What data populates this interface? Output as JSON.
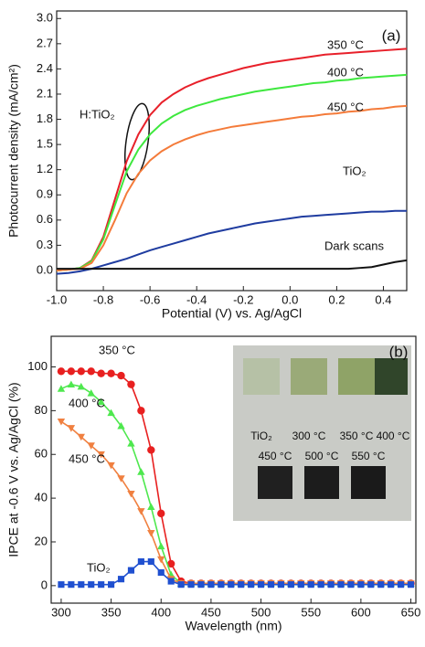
{
  "chart_data": [
    {
      "type": "line",
      "panel_label": "(a)",
      "annotation": "H:TiO₂",
      "xlabel": "Potential (V) vs. Ag/AgCl",
      "ylabel": "Photocurrent density (mA/cm²)",
      "xlim": [
        -1.0,
        0.5
      ],
      "ylim": [
        -0.24,
        3.09
      ],
      "xticks": [
        {
          "value": -1.0,
          "label": "-1.0"
        },
        -0.8,
        -0.6,
        -0.4,
        -0.2,
        {
          "value": 0,
          "label": "0.0"
        },
        0.2,
        0.4
      ],
      "yticks": [
        {
          "value": 0,
          "label": "0.0"
        },
        0.3,
        0.6,
        0.9,
        1.2,
        1.5,
        1.8,
        2.1,
        2.4,
        2.7,
        {
          "value": 3,
          "label": "3.0"
        }
      ],
      "x": [
        -1,
        -0.95,
        -0.9,
        -0.85,
        -0.8,
        -0.75,
        -0.7,
        -0.65,
        -0.6,
        -0.55,
        -0.5,
        -0.45,
        -0.4,
        -0.35,
        -0.3,
        -0.25,
        -0.2,
        -0.15,
        -0.1,
        -0.05,
        0,
        0.05,
        0.1,
        0.15,
        0.2,
        0.25,
        0.3,
        0.35,
        0.4,
        0.45,
        0.5
      ],
      "series": [
        {
          "name": "350 °C",
          "color": "#e8202a",
          "values": [
            0.0,
            0.01,
            0.03,
            0.12,
            0.4,
            0.85,
            1.3,
            1.62,
            1.85,
            2.0,
            2.1,
            2.18,
            2.24,
            2.29,
            2.33,
            2.37,
            2.41,
            2.44,
            2.47,
            2.49,
            2.51,
            2.53,
            2.55,
            2.57,
            2.58,
            2.59,
            2.6,
            2.61,
            2.62,
            2.63,
            2.64
          ]
        },
        {
          "name": "400 °C",
          "color": "#3ee83e",
          "values": [
            0.0,
            0.01,
            0.03,
            0.11,
            0.37,
            0.78,
            1.18,
            1.44,
            1.62,
            1.75,
            1.84,
            1.91,
            1.96,
            2.0,
            2.04,
            2.07,
            2.1,
            2.13,
            2.15,
            2.17,
            2.19,
            2.21,
            2.23,
            2.24,
            2.26,
            2.27,
            2.29,
            2.3,
            2.31,
            2.32,
            2.33
          ]
        },
        {
          "name": "450 °C",
          "color": "#f47b3a",
          "values": [
            0.0,
            0.01,
            0.02,
            0.09,
            0.3,
            0.6,
            0.92,
            1.15,
            1.31,
            1.42,
            1.5,
            1.56,
            1.61,
            1.65,
            1.68,
            1.71,
            1.73,
            1.75,
            1.77,
            1.79,
            1.81,
            1.83,
            1.84,
            1.86,
            1.87,
            1.89,
            1.9,
            1.92,
            1.93,
            1.95,
            1.96
          ]
        },
        {
          "name": "TiO₂",
          "color": "#1f3ca0",
          "values": [
            -0.04,
            -0.03,
            -0.01,
            0.02,
            0.06,
            0.1,
            0.14,
            0.19,
            0.24,
            0.28,
            0.32,
            0.36,
            0.4,
            0.44,
            0.47,
            0.5,
            0.53,
            0.56,
            0.58,
            0.6,
            0.62,
            0.64,
            0.65,
            0.66,
            0.67,
            0.68,
            0.69,
            0.7,
            0.7,
            0.71,
            0.71
          ]
        },
        {
          "name": "Dark scans",
          "color": "#111111",
          "values": [
            0.02,
            0.02,
            0.02,
            0.02,
            0.02,
            0.02,
            0.02,
            0.02,
            0.02,
            0.02,
            0.02,
            0.02,
            0.02,
            0.02,
            0.02,
            0.02,
            0.02,
            0.02,
            0.02,
            0.02,
            0.02,
            0.02,
            0.02,
            0.02,
            0.02,
            0.02,
            0.03,
            0.04,
            0.07,
            0.1,
            0.12
          ]
        }
      ]
    },
    {
      "type": "line",
      "panel_label": "(b)",
      "xlabel": "Wavelength (nm)",
      "ylabel": "IPCE at -0.6 V vs. Ag/AgCl (%)",
      "xlim": [
        290,
        655
      ],
      "ylim": [
        -8,
        114
      ],
      "xticks": [
        300,
        350,
        400,
        450,
        500,
        550,
        600,
        650
      ],
      "yticks": [
        0,
        20,
        40,
        60,
        80,
        100
      ],
      "inset_labels": [
        "TiO₂",
        "300 °C",
        "350 °C",
        "400 °C",
        "450 °C",
        "500 °C",
        "550 °C"
      ],
      "x": [
        300,
        310,
        320,
        330,
        340,
        350,
        360,
        370,
        380,
        390,
        400,
        410,
        420,
        430,
        440,
        450,
        460,
        470,
        480,
        490,
        500,
        510,
        520,
        530,
        540,
        550,
        560,
        570,
        580,
        590,
        600,
        610,
        620,
        630,
        640,
        650
      ],
      "series": [
        {
          "name": "350 °C",
          "color": "#e82020",
          "marker": "circle",
          "values": [
            98,
            98,
            98,
            98,
            97,
            97,
            96,
            92,
            80,
            62,
            33,
            10,
            2,
            1,
            1,
            1,
            1,
            1,
            1,
            1,
            1,
            1,
            1,
            1,
            1,
            1,
            1,
            1,
            1,
            1,
            1,
            1,
            1,
            1,
            1,
            1
          ]
        },
        {
          "name": "400 °C",
          "color": "#4ee84e",
          "marker": "triangle",
          "values": [
            90,
            92,
            91,
            88,
            84,
            79,
            73,
            65,
            52,
            36,
            18,
            5,
            1,
            1,
            1,
            1,
            1,
            1,
            1,
            1,
            1,
            1,
            1,
            1,
            1,
            1,
            1,
            1,
            1,
            1,
            1,
            1,
            1,
            1,
            1,
            1
          ]
        },
        {
          "name": "450 °C",
          "color": "#f08040",
          "marker": "down-triangle",
          "values": [
            75,
            72,
            68,
            64,
            60,
            55,
            49,
            42,
            34,
            24,
            12,
            3,
            1,
            1,
            1,
            1,
            1,
            1,
            1,
            1,
            1,
            1,
            1,
            1,
            1,
            1,
            1,
            1,
            1,
            1,
            1,
            1,
            1,
            1,
            1,
            1
          ]
        },
        {
          "name": "TiO₂",
          "color": "#2050d0",
          "marker": "square",
          "values": [
            0.5,
            0.5,
            0.5,
            0.5,
            0.5,
            0.5,
            3,
            7,
            11,
            11,
            6,
            2,
            0.5,
            0.5,
            0.5,
            0.5,
            0.5,
            0.5,
            0.5,
            0.5,
            0.5,
            0.5,
            0.5,
            0.5,
            0.5,
            0.5,
            0.5,
            0.5,
            0.5,
            0.5,
            0.5,
            0.5,
            0.5,
            0.5,
            0.5,
            0.5
          ]
        }
      ]
    }
  ]
}
